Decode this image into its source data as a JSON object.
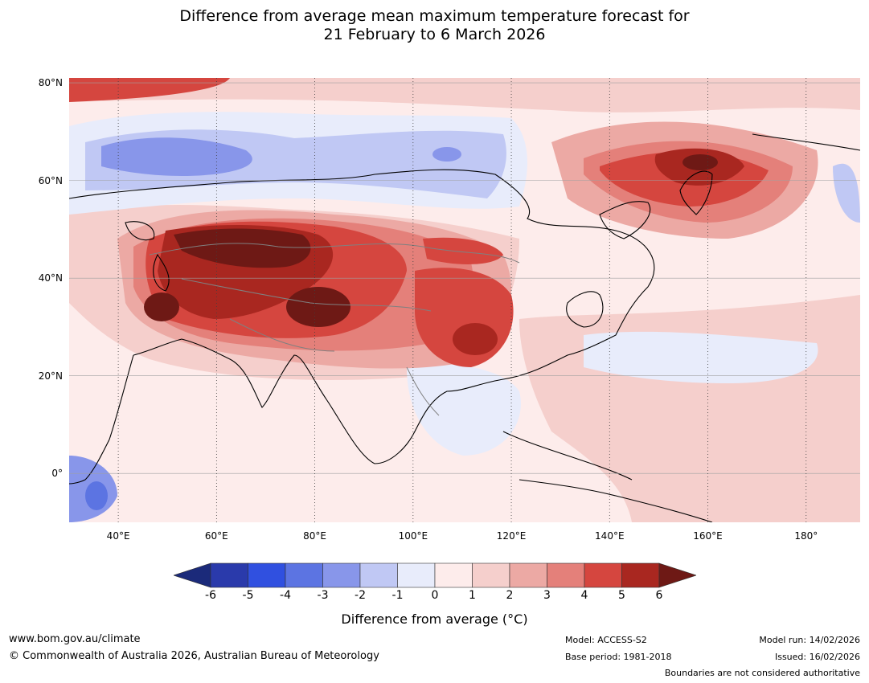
{
  "title": {
    "line1": "Difference from average mean maximum temperature forecast for",
    "line2": "21 February to 6 March 2026"
  },
  "map": {
    "lat_labels": [
      "80°N",
      "60°N",
      "40°N",
      "20°N",
      "0°"
    ],
    "lon_labels": [
      "40°E",
      "60°E",
      "80°E",
      "100°E",
      "120°E",
      "140°E",
      "160°E",
      "180°"
    ],
    "lat_values": [
      80,
      60,
      40,
      20,
      0
    ],
    "lon_values": [
      40,
      60,
      80,
      100,
      120,
      140,
      160,
      180
    ],
    "extent": {
      "lon_min": 30,
      "lon_max": 191,
      "lat_min": -10,
      "lat_max": 81
    }
  },
  "colorbar": {
    "ticks": [
      "-6",
      "-5",
      "-4",
      "-3",
      "-2",
      "-1",
      "0",
      "1",
      "2",
      "3",
      "4",
      "5",
      "6"
    ],
    "label": "Difference from average (°C)",
    "low_extend_color": "#1b2a7a",
    "high_extend_color": "#6e1915",
    "colors": [
      "#2a3aab",
      "#3050e0",
      "#5c74e2",
      "#8896ea",
      "#c0c8f4",
      "#e8ecfb",
      "#fdeceb",
      "#f5cfcc",
      "#eca9a4",
      "#e4807a",
      "#d5463f",
      "#a92720"
    ]
  },
  "footer": {
    "website": "www.bom.gov.au/climate",
    "copyright": "© Commonwealth of Australia 2026, Australian Bureau of Meteorology",
    "model": "Model: ACCESS-S2",
    "base_period": "Base period: 1981-2018",
    "model_run": "Model run: 14/02/2026",
    "issued": "Issued: 16/02/2026",
    "boundaries_note": "Boundaries are not considered authoritative"
  }
}
